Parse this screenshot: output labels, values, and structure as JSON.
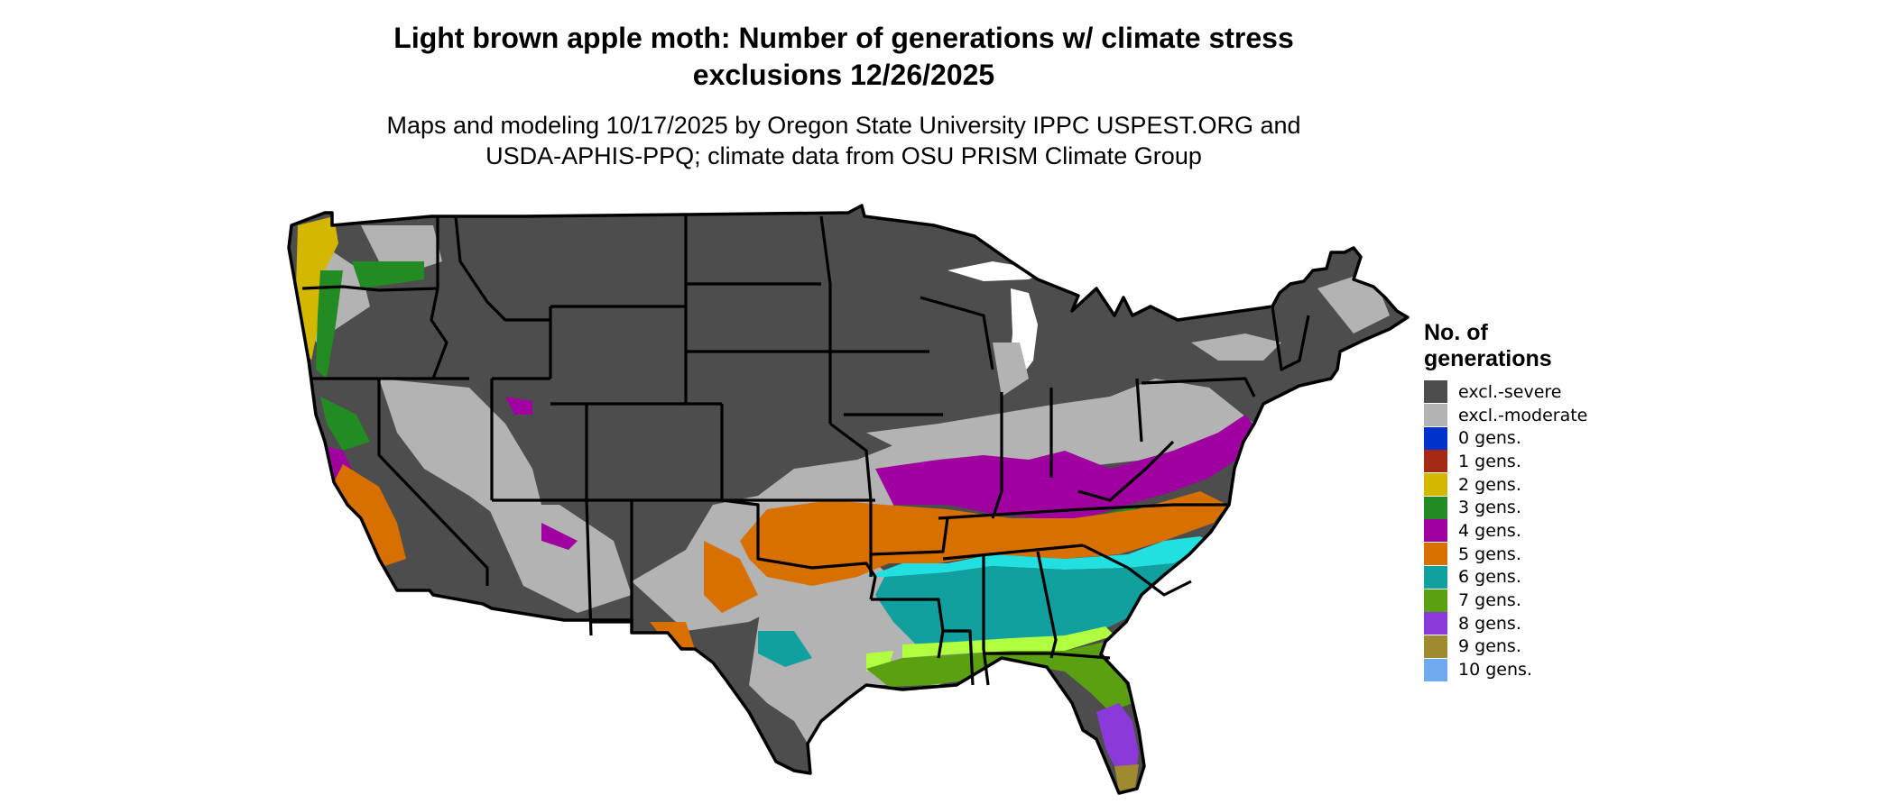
{
  "title_line1": "Light brown apple moth: Number of generations w/ climate stress",
  "title_line2": "exclusions 12/26/2025",
  "subtitle_line1": "Maps and modeling 10/17/2025 by Oregon State University IPPC USPEST.ORG and",
  "subtitle_line2": "USDA-APHIS-PPQ; climate data from OSU PRISM Climate Group",
  "legend": {
    "title_line1": "No. of",
    "title_line2": "generations",
    "items": [
      {
        "label": "excl.-severe",
        "color": "#4d4d4d"
      },
      {
        "label": "excl.-moderate",
        "color": "#b3b3b3"
      },
      {
        "label": "0 gens.",
        "color": "#0033cc"
      },
      {
        "label": "1 gens.",
        "color": "#a52a14"
      },
      {
        "label": "2 gens.",
        "color": "#d4b800"
      },
      {
        "label": "3 gens.",
        "color": "#228b22"
      },
      {
        "label": "4 gens.",
        "color": "#a000a0"
      },
      {
        "label": "5 gens.",
        "color": "#d87000"
      },
      {
        "label": "6 gens.",
        "color": "#10a0a0"
      },
      {
        "label": "7 gens.",
        "color": "#5aa010"
      },
      {
        "label": "8 gens.",
        "color": "#8a3ad8"
      },
      {
        "label": "9 gens.",
        "color": "#a08a30"
      },
      {
        "label": "10 gens.",
        "color": "#70aaee"
      }
    ]
  },
  "map": {
    "region": "Contiguous United States",
    "colors": {
      "background": "#ffffff",
      "state_border": "#000000",
      "light_cyan_band": "#22e0e0",
      "light_green_band": "#b0ff40"
    }
  }
}
